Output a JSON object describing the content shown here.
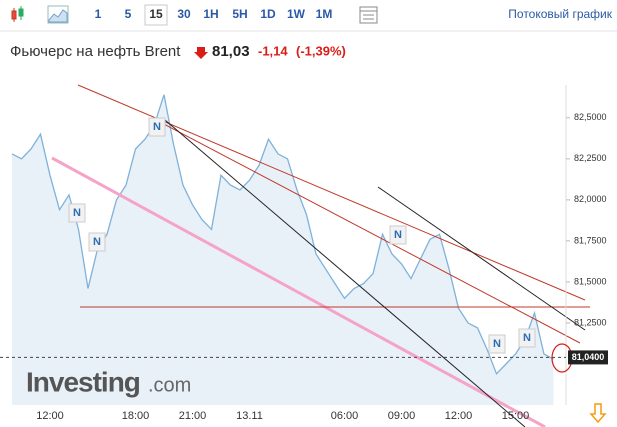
{
  "toolbar": {
    "intervals": [
      "1",
      "5",
      "15",
      "30",
      "1H",
      "5H",
      "1D",
      "1W",
      "1M"
    ],
    "selected": 2,
    "stream_link": "Потоковый график"
  },
  "header": {
    "title": "Фьючерс на нефть Brent",
    "price": "81,03",
    "change": "-1,14",
    "change_percent": "(-1,39%)"
  },
  "watermark": {
    "brand": "Investing",
    "suffix": ".com"
  },
  "chart_data": {
    "type": "area",
    "color": "#7fb2d9",
    "fill": "#e8f0f8",
    "categories": [
      null,
      null,
      null,
      null,
      "12:00",
      null,
      null,
      null,
      null,
      null,
      null,
      null,
      null,
      "18:00",
      null,
      null,
      null,
      null,
      null,
      "21:00",
      null,
      null,
      null,
      null,
      null,
      "13.11",
      null,
      null,
      null,
      null,
      null,
      null,
      null,
      null,
      null,
      "06:00",
      null,
      null,
      null,
      null,
      null,
      "09:00",
      null,
      null,
      null,
      null,
      null,
      "12:00",
      null,
      null,
      null,
      null,
      null,
      "15:00",
      null,
      null,
      null,
      null
    ],
    "values": [
      82.28,
      82.25,
      82.31,
      82.4,
      82.15,
      81.94,
      82.03,
      81.82,
      81.46,
      81.7,
      81.79,
      82.0,
      82.09,
      82.31,
      82.37,
      82.46,
      82.64,
      82.34,
      82.09,
      81.97,
      81.88,
      81.82,
      82.15,
      82.09,
      82.06,
      82.12,
      82.21,
      82.37,
      82.28,
      82.25,
      82.06,
      81.91,
      81.67,
      81.58,
      81.49,
      81.4,
      81.46,
      81.49,
      81.55,
      81.79,
      81.67,
      81.61,
      81.52,
      81.64,
      81.76,
      81.79,
      81.58,
      81.34,
      81.25,
      81.22,
      81.09,
      80.94,
      81.0,
      81.06,
      81.15,
      81.31,
      81.06,
      81.03
    ],
    "ylim": [
      80.75,
      82.7
    ],
    "yticks": [
      {
        "value": 81.25,
        "label": "81,2500"
      },
      {
        "value": 81.5,
        "label": "81,5000"
      },
      {
        "value": 81.75,
        "label": "81,7500"
      },
      {
        "value": 82.0,
        "label": "82,0000"
      },
      {
        "value": 82.25,
        "label": "82,2500"
      },
      {
        "value": 82.5,
        "label": "82,5000"
      }
    ],
    "last_value": {
      "value": 81.04,
      "label": "81,0400"
    },
    "annotations": [
      "N",
      "N",
      "N",
      "N",
      "N",
      "N"
    ]
  }
}
